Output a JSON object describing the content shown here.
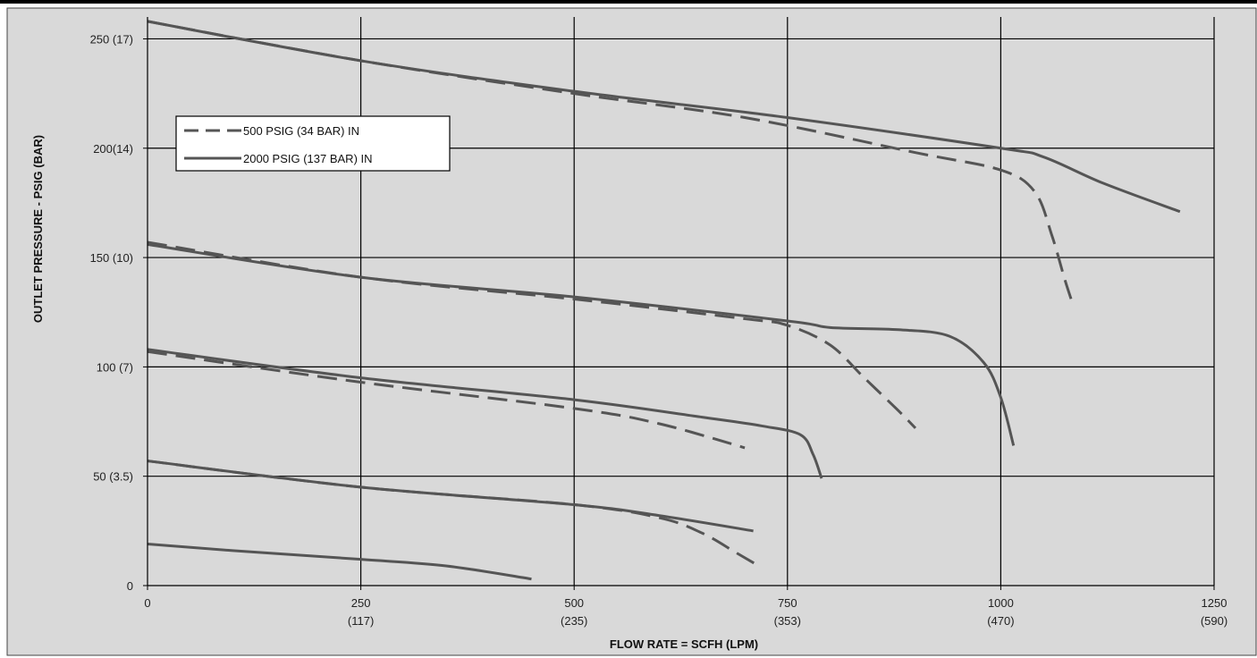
{
  "chart_data": {
    "type": "line",
    "xlabel": "FLOW RATE = SCFH (LPM)",
    "ylabel": "OUTLET PRESSURE - PSIG (BAR)",
    "xlim": [
      0,
      1250
    ],
    "ylim": [
      0,
      260
    ],
    "grid": true,
    "colors": {
      "background": "#d9d9d9",
      "line": "#555555",
      "grid": "#000000"
    },
    "x_ticks": [
      {
        "value": 0,
        "label": "0",
        "sublabel": ""
      },
      {
        "value": 250,
        "label": "250",
        "sublabel": "(117)"
      },
      {
        "value": 500,
        "label": "500",
        "sublabel": "(235)"
      },
      {
        "value": 750,
        "label": "750",
        "sublabel": "(353)"
      },
      {
        "value": 1000,
        "label": "1000",
        "sublabel": "(470)"
      },
      {
        "value": 1250,
        "label": "1250",
        "sublabel": "(590)"
      }
    ],
    "y_ticks": [
      {
        "value": 0,
        "label": "0"
      },
      {
        "value": 50,
        "label": "50 (3.5)"
      },
      {
        "value": 100,
        "label": "100 (7)"
      },
      {
        "value": 150,
        "label": "150 (10)"
      },
      {
        "value": 200,
        "label": "200(14)"
      },
      {
        "value": 250,
        "label": "250 (17)"
      }
    ],
    "legend": {
      "position": "upper-left",
      "entries": [
        {
          "label": "500 PSIG (34 BAR) IN",
          "style": "dashed"
        },
        {
          "label": "2000 PSIG (137 BAR) IN",
          "style": "solid"
        }
      ]
    },
    "series": [
      {
        "style": "dashed",
        "points": [
          [
            0,
            258
          ],
          [
            250,
            240
          ],
          [
            500,
            225
          ],
          [
            700,
            214
          ],
          [
            900,
            198
          ],
          [
            1000,
            190
          ],
          [
            1040,
            180
          ],
          [
            1060,
            160
          ],
          [
            1075,
            140
          ],
          [
            1085,
            128
          ]
        ]
      },
      {
        "style": "solid",
        "points": [
          [
            0,
            258
          ],
          [
            250,
            240
          ],
          [
            500,
            226
          ],
          [
            750,
            214
          ],
          [
            1000,
            200
          ],
          [
            1050,
            196
          ],
          [
            1120,
            184
          ],
          [
            1210,
            171
          ]
        ]
      },
      {
        "style": "dashed",
        "points": [
          [
            0,
            157
          ],
          [
            250,
            141
          ],
          [
            500,
            131
          ],
          [
            700,
            122
          ],
          [
            750,
            119
          ],
          [
            800,
            110
          ],
          [
            840,
            95
          ],
          [
            880,
            80
          ],
          [
            900,
            72
          ]
        ]
      },
      {
        "style": "solid",
        "points": [
          [
            0,
            156
          ],
          [
            250,
            141
          ],
          [
            500,
            132
          ],
          [
            750,
            121
          ],
          [
            800,
            118
          ],
          [
            880,
            117
          ],
          [
            940,
            114
          ],
          [
            980,
            102
          ],
          [
            1000,
            86
          ],
          [
            1015,
            64
          ]
        ]
      },
      {
        "style": "dashed",
        "points": [
          [
            0,
            107
          ],
          [
            250,
            93
          ],
          [
            500,
            81
          ],
          [
            600,
            74
          ],
          [
            700,
            63
          ]
        ]
      },
      {
        "style": "solid",
        "points": [
          [
            0,
            108
          ],
          [
            250,
            95
          ],
          [
            500,
            85
          ],
          [
            650,
            77
          ],
          [
            720,
            73
          ],
          [
            765,
            69
          ],
          [
            780,
            60
          ],
          [
            790,
            49
          ]
        ]
      },
      {
        "style": "dashed",
        "points": [
          [
            0,
            57
          ],
          [
            250,
            45
          ],
          [
            500,
            37
          ],
          [
            600,
            31
          ],
          [
            650,
            24
          ],
          [
            690,
            15
          ],
          [
            712,
            10
          ]
        ]
      },
      {
        "style": "solid",
        "points": [
          [
            0,
            57
          ],
          [
            250,
            45
          ],
          [
            500,
            37
          ],
          [
            600,
            32
          ],
          [
            710,
            25
          ]
        ]
      },
      {
        "style": "solid",
        "points": [
          [
            0,
            19
          ],
          [
            100,
            16
          ],
          [
            250,
            12
          ],
          [
            350,
            9
          ],
          [
            450,
            3
          ]
        ]
      }
    ]
  }
}
